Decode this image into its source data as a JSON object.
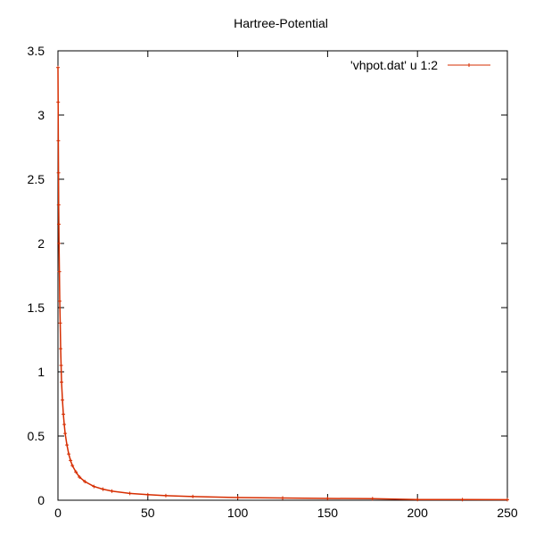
{
  "chart_data": {
    "type": "line",
    "title": "Hartree-Potential",
    "xlabel": "",
    "ylabel": "",
    "xlim": [
      0,
      250
    ],
    "ylim": [
      0,
      3.5
    ],
    "xticks": [
      "0",
      "50",
      "100",
      "150",
      "200",
      "250"
    ],
    "yticks": [
      "0",
      "0.5",
      "1",
      "1.5",
      "2",
      "2.5",
      "3",
      "3.5"
    ],
    "grid": false,
    "legend_position": "top-right",
    "series": [
      {
        "name": "'vhpot.dat' u 1:2",
        "color": "#d62d00",
        "marker": "plus",
        "x": [
          0,
          0.1,
          0.2,
          0.3,
          0.4,
          0.5,
          0.6,
          0.8,
          1.0,
          1.25,
          1.5,
          1.75,
          2.0,
          2.5,
          3.0,
          3.5,
          4.0,
          5.0,
          6.0,
          7.0,
          8.0,
          10.0,
          12.0,
          15.0,
          20.0,
          25.0,
          30.0,
          40.0,
          50.0,
          60.0,
          75.0,
          100.0,
          125.0,
          150.0,
          175.0,
          200.0,
          225.0,
          250.0
        ],
        "y": [
          3.37,
          3.1,
          2.8,
          2.55,
          2.3,
          2.15,
          2.0,
          1.78,
          1.55,
          1.38,
          1.18,
          1.05,
          0.92,
          0.78,
          0.67,
          0.59,
          0.52,
          0.43,
          0.36,
          0.31,
          0.27,
          0.22,
          0.18,
          0.145,
          0.107,
          0.086,
          0.071,
          0.053,
          0.043,
          0.036,
          0.029,
          0.021,
          0.017,
          0.014,
          0.012,
          0.0055,
          0.0048,
          0.0042
        ]
      }
    ]
  }
}
